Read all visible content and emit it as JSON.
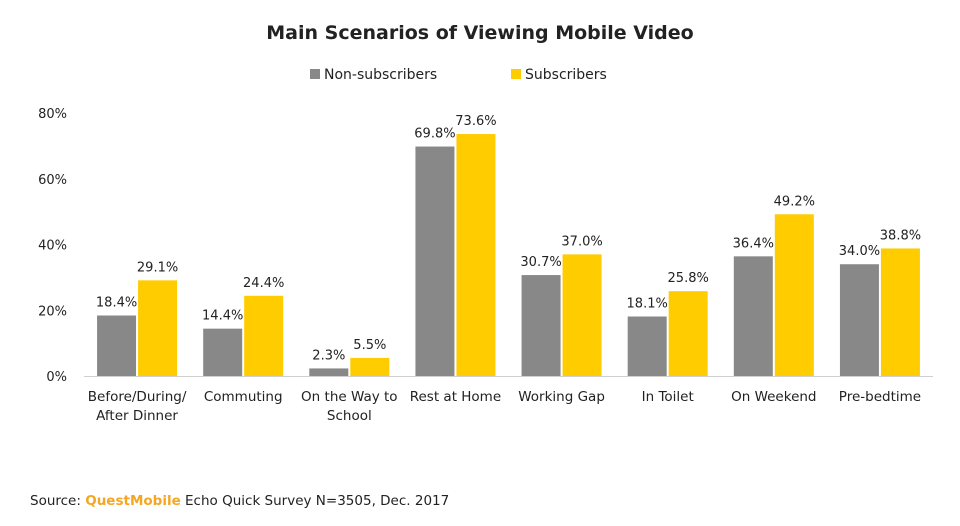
{
  "chart_data": {
    "type": "bar",
    "title": "Main Scenarios of Viewing Mobile Video",
    "categories": [
      [
        "Before/During/",
        "After Dinner"
      ],
      [
        "Commuting"
      ],
      [
        "On the Way to",
        "School"
      ],
      [
        "Rest at Home"
      ],
      [
        "Working Gap"
      ],
      [
        "In Toilet"
      ],
      [
        "On Weekend"
      ],
      [
        "Pre-bedtime"
      ]
    ],
    "series": [
      {
        "name": "Non-subscribers",
        "color": "#888888",
        "values": [
          18.4,
          14.4,
          2.3,
          69.8,
          30.7,
          18.1,
          36.4,
          34.0
        ],
        "labels": [
          "18.4%",
          "14.4%",
          "2.3%",
          "69.8%",
          "30.7%",
          "18.1%",
          "36.4%",
          "34.0%"
        ]
      },
      {
        "name": "Subscribers",
        "color": "#ffcc00",
        "values": [
          29.1,
          24.4,
          5.5,
          73.6,
          37.0,
          25.8,
          49.2,
          38.8
        ],
        "labels": [
          "29.1%",
          "24.4%",
          "5.5%",
          "73.6%",
          "37.0%",
          "25.8%",
          "49.2%",
          "38.8%"
        ]
      }
    ],
    "ylim": [
      0,
      80
    ],
    "yticks": [
      {
        "value": 0,
        "label": "0%"
      },
      {
        "value": 20,
        "label": "20%"
      },
      {
        "value": 40,
        "label": "40%"
      },
      {
        "value": 60,
        "label": "60%"
      },
      {
        "value": 80,
        "label": "80%"
      }
    ],
    "grid": false,
    "legend": "top-center"
  },
  "source": {
    "prefix": "Source: ",
    "brand": "QuestMobile",
    "suffix": " Echo Quick Survey N=3505, Dec. 2017"
  }
}
